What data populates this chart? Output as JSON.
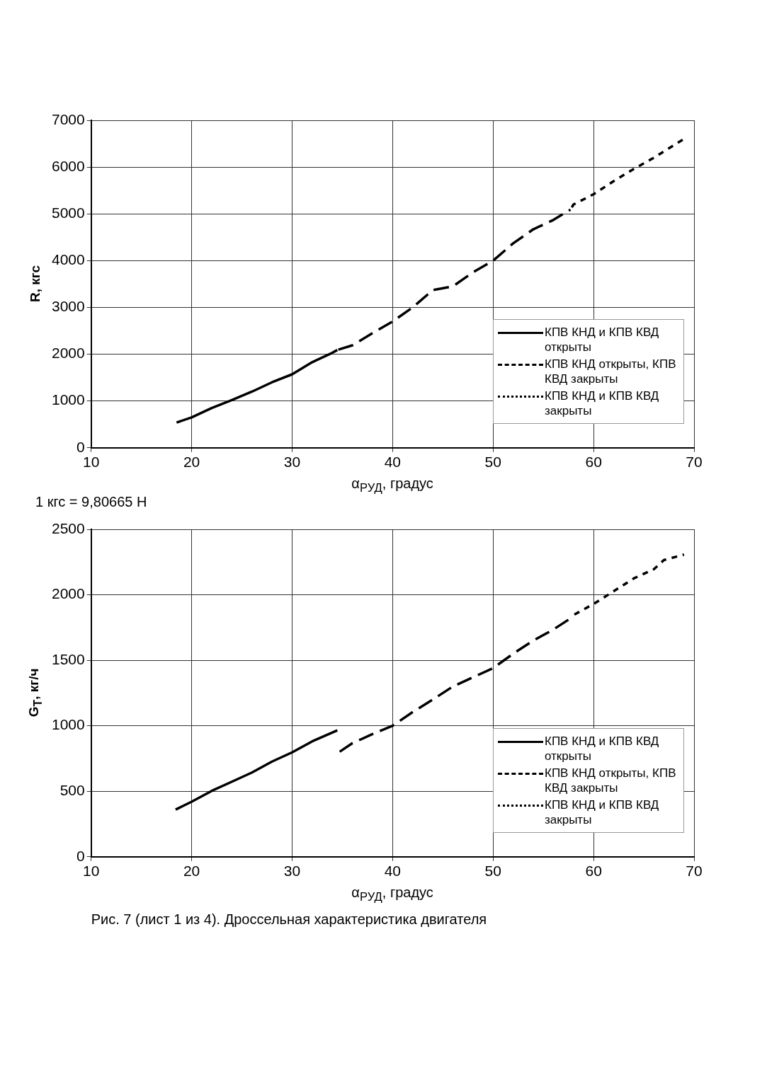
{
  "chart_data": [
    {
      "type": "line",
      "xlabel": "α$_{РУД}$, градус",
      "ylabel": "R, кгс",
      "xlim": [
        10,
        70
      ],
      "xticks": [
        10,
        20,
        30,
        40,
        50,
        60,
        70
      ],
      "ylim": [
        0,
        7000
      ],
      "yticks": [
        0,
        1000,
        2000,
        3000,
        4000,
        5000,
        6000,
        7000
      ],
      "grid": true,
      "legend": "bottom right",
      "marker": "none",
      "annotations": [
        "1 кгс = 9,80665 Н"
      ],
      "series": [
        {
          "name": "КПВ КНД и КПВ КВД открыты",
          "color": "#000000",
          "line_style": "solid",
          "x": [
            18.5,
            20,
            22,
            24,
            26,
            28,
            30,
            32,
            34,
            34.5
          ],
          "values": [
            540,
            650,
            850,
            1020,
            1200,
            1400,
            1570,
            1830,
            2030,
            2090
          ]
        },
        {
          "name": "КПВ КНД открыты, КПВ КВД закрыты",
          "color": "#000000",
          "line_style": "dashed",
          "x": [
            34.5,
            36,
            38,
            40,
            42,
            44,
            46,
            48,
            50,
            52,
            54,
            56,
            57.7
          ],
          "values": [
            2090,
            2190,
            2450,
            2700,
            3000,
            3370,
            3450,
            3750,
            4000,
            4370,
            4670,
            4870,
            5090
          ]
        },
        {
          "name": "КПВ КНД и КПВ КВД закрыты",
          "color": "#000000",
          "line_style": "dotted",
          "x": [
            57.7,
            58,
            60,
            62,
            64,
            66,
            68,
            69
          ],
          "values": [
            5090,
            5200,
            5420,
            5700,
            5960,
            6200,
            6470,
            6600
          ]
        }
      ]
    },
    {
      "type": "line",
      "xlabel": "α$_{РУД}$, градус",
      "ylabel": "G$_{Т}$, кг/ч",
      "xlim": [
        10,
        70
      ],
      "xticks": [
        10,
        20,
        30,
        40,
        50,
        60,
        70
      ],
      "ylim": [
        0,
        2500
      ],
      "yticks": [
        0,
        500,
        1000,
        1500,
        2000,
        2500
      ],
      "grid": true,
      "legend": "bottom right",
      "marker": "none",
      "annotations": [
        "Рис. 7 (лист 1 из 4). Дроссельная характеристика двигателя"
      ],
      "series": [
        {
          "name": "КПВ КНД и КПВ КВД открыты",
          "color": "#000000",
          "line_style": "solid",
          "x": [
            18.4,
            20,
            22,
            24,
            26,
            28,
            30,
            32,
            34.5
          ],
          "values": [
            360,
            420,
            503,
            573,
            643,
            727,
            797,
            881,
            965
          ]
        },
        {
          "name": "КПВ КНД открыты, КПВ КВД закрыты",
          "color": "#000000",
          "line_style": "dashed",
          "x": [
            34.5,
            36,
            38,
            40,
            42,
            44,
            46,
            48,
            50,
            52,
            54,
            56,
            57.7
          ],
          "values": [
            790,
            867,
            937,
            1000,
            1105,
            1200,
            1300,
            1370,
            1440,
            1550,
            1650,
            1735,
            1820
          ]
        },
        {
          "name": "КПВ КНД и КПВ КВД закрыты",
          "color": "#000000",
          "line_style": "dotted",
          "x": [
            58,
            60,
            62,
            64,
            66,
            67,
            69
          ],
          "values": [
            1845,
            1930,
            2027,
            2125,
            2195,
            2265,
            2307
          ]
        }
      ]
    }
  ]
}
